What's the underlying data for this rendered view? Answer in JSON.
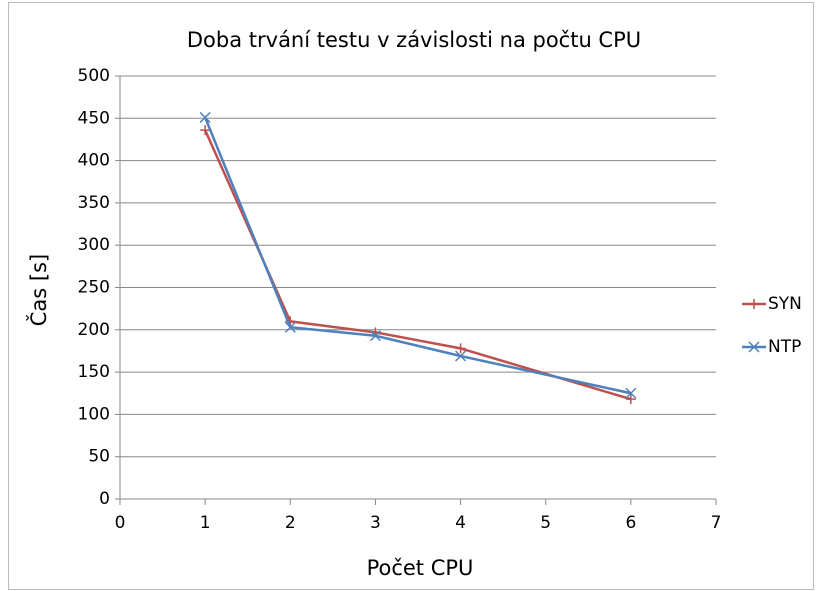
{
  "chart_data": {
    "type": "line",
    "title": "Doba trvání testu v závislosti na počtu CPU",
    "xlabel": "Počet CPU",
    "ylabel": "Čas [s]",
    "x": [
      1,
      2,
      3,
      4,
      6
    ],
    "series": [
      {
        "name": "SYN",
        "color": "#c0504d",
        "marker": "+",
        "values": [
          436,
          210,
          197,
          178,
          118
        ]
      },
      {
        "name": "NTP",
        "color": "#4f81bd",
        "marker": "x",
        "values": [
          451,
          203,
          193,
          169,
          125
        ]
      }
    ],
    "xlim": [
      0,
      7
    ],
    "xticks": [
      0,
      1,
      2,
      3,
      4,
      5,
      6,
      7
    ],
    "ylim": [
      0,
      500
    ],
    "yticks": [
      0,
      50,
      100,
      150,
      200,
      250,
      300,
      350,
      400,
      450,
      500
    ],
    "grid": true,
    "legend": "right"
  }
}
